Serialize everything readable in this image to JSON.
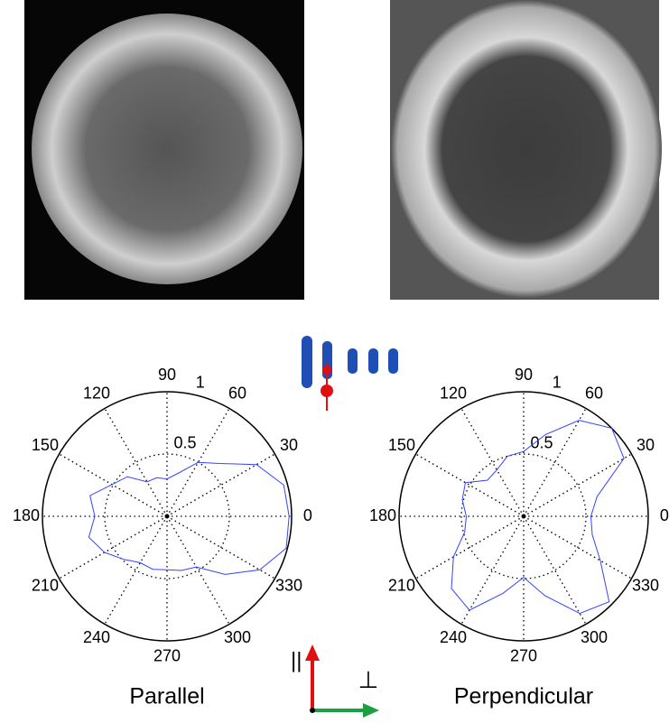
{
  "chart_data": [
    {
      "type": "polar",
      "title": "Parallel",
      "theta": [
        0,
        15,
        30,
        45,
        60,
        75,
        90,
        105,
        120,
        135,
        150,
        165,
        180,
        195,
        210,
        225,
        240,
        255,
        270,
        285,
        300,
        315,
        330,
        345
      ],
      "values": [
        0.98,
        0.97,
        0.83,
        0.6,
        0.5,
        0.36,
        0.3,
        0.32,
        0.32,
        0.45,
        0.51,
        0.64,
        0.58,
        0.65,
        0.58,
        0.49,
        0.43,
        0.44,
        0.43,
        0.45,
        0.47,
        0.66,
        0.86,
        0.99
      ],
      "color": "#3344ff",
      "rlim": [
        0,
        1
      ],
      "rticks": [
        0.5,
        1
      ],
      "thetaticks": [
        0,
        30,
        60,
        90,
        120,
        150,
        180,
        210,
        240,
        270,
        300,
        330
      ],
      "grid": true
    },
    {
      "type": "polar",
      "title": "Perpendicular",
      "theta": [
        0,
        15,
        30,
        45,
        60,
        75,
        90,
        105,
        120,
        135,
        150,
        165,
        180,
        195,
        210,
        225,
        240,
        255,
        270,
        285,
        300,
        315,
        330,
        345
      ],
      "values": [
        0.54,
        0.61,
        0.93,
        1.0,
        0.89,
        0.68,
        0.52,
        0.5,
        0.43,
        0.41,
        0.54,
        0.51,
        0.46,
        0.49,
        0.65,
        0.82,
        0.87,
        0.64,
        0.49,
        0.66,
        0.9,
        0.97,
        0.71,
        0.57
      ],
      "color": "#3344ff",
      "rlim": [
        0,
        1
      ],
      "rticks": [
        0.5,
        1
      ],
      "thetaticks": [
        0,
        30,
        60,
        90,
        120,
        150,
        180,
        210,
        240,
        270,
        300,
        330
      ],
      "grid": true
    }
  ],
  "axes_diagram": {
    "parallel_symbol": "||",
    "perpendicular_symbol": "⊥"
  }
}
